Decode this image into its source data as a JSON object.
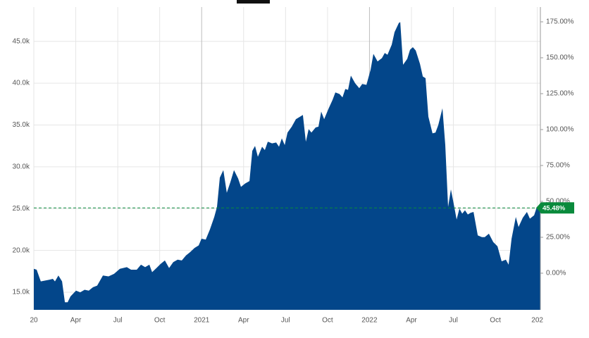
{
  "chart_data": {
    "type": "area",
    "color": "#03468a",
    "grid": true,
    "x": [
      0,
      0.2,
      0.5,
      1.11,
      1.36,
      1.51,
      1.76,
      2.02,
      2.22,
      2.42,
      2.62,
      3.02,
      3.32,
      3.63,
      3.93,
      4.23,
      4.53,
      4.94,
      5.34,
      5.74,
      6.15,
      6.65,
      6.95,
      7.36,
      7.66,
      7.96,
      8.26,
      8.46,
      8.77,
      9.07,
      9.37,
      9.67,
      9.97,
      10.28,
      10.58,
      10.88,
      11.18,
      11.49,
      11.79,
      11.99,
      12.29,
      12.59,
      12.9,
      13.1,
      13.3,
      13.55,
      13.8,
      14.06,
      14.31,
      14.61,
      14.81,
      15.11,
      15.42,
      15.62,
      15.82,
      16.02,
      16.32,
      16.52,
      16.73,
      17.03,
      17.33,
      17.53,
      17.73,
      17.94,
      18.14,
      18.44,
      18.74,
      19.04,
      19.24,
      19.45,
      19.65,
      19.85,
      20.15,
      20.35,
      20.55,
      20.76,
      21.06,
      21.36,
      21.56,
      21.86,
      22.07,
      22.27,
      22.47,
      22.67,
      22.97,
      23.27,
      23.48,
      23.78,
      24.08,
      24.28,
      24.58,
      24.89,
      25.09,
      25.29,
      25.59,
      25.79,
      26.1,
      26.2,
      26.4,
      26.7,
      26.9,
      27.1,
      27.31,
      27.61,
      27.81,
      28.01,
      28.21,
      28.51,
      28.72,
      28.92,
      29.22,
      29.42,
      29.62,
      29.82,
      30.02,
      30.23,
      30.43,
      30.63,
      30.83,
      31.03,
      31.23,
      31.44,
      31.74,
      32.04,
      32.24,
      32.54,
      32.85,
      33.15,
      33.45,
      33.75,
      33.95,
      34.16,
      34.46,
      34.66,
      34.96,
      35.26,
      35.47,
      35.77,
      35.97,
      36.22
    ],
    "values": [
      17800,
      17700,
      16300,
      16500,
      16600,
      16300,
      17000,
      16300,
      13800,
      13800,
      14500,
      15200,
      15000,
      15300,
      15200,
      15600,
      15800,
      17000,
      16900,
      17200,
      17800,
      18000,
      17700,
      17700,
      18300,
      18000,
      18300,
      17400,
      17900,
      18400,
      18800,
      17900,
      18600,
      18900,
      18800,
      19400,
      19800,
      20300,
      20600,
      21400,
      21300,
      22500,
      24000,
      25200,
      28700,
      29600,
      26900,
      28200,
      29600,
      28600,
      27600,
      28000,
      28300,
      31900,
      32500,
      31200,
      32400,
      32000,
      33000,
      32800,
      32900,
      32400,
      33400,
      32600,
      34100,
      34800,
      35700,
      36000,
      36200,
      33000,
      34500,
      34100,
      34700,
      34800,
      36600,
      35700,
      36900,
      38000,
      38900,
      38700,
      38300,
      39300,
      39200,
      40900,
      40000,
      39400,
      39900,
      39800,
      41600,
      43500,
      42600,
      43000,
      43600,
      43400,
      44600,
      46100,
      47200,
      47300,
      42200,
      42900,
      44000,
      44300,
      43900,
      42300,
      40800,
      40600,
      36000,
      34000,
      34100,
      35000,
      37000,
      32600,
      25200,
      27300,
      25600,
      23700,
      25000,
      24400,
      24800,
      24300,
      24500,
      24600,
      21800,
      21600,
      21600,
      22000,
      21000,
      20500,
      18700,
      18900,
      18300,
      21400,
      24000,
      22800,
      23900,
      24600,
      23800,
      24200,
      25200,
      25000
    ],
    "xlim": [
      0,
      36.22
    ],
    "xticks": [
      {
        "value": 0,
        "label": "20"
      },
      {
        "value": 3,
        "label": "Apr"
      },
      {
        "value": 6,
        "label": "Jul"
      },
      {
        "value": 9,
        "label": "Oct"
      },
      {
        "value": 12,
        "label": "2021"
      },
      {
        "value": 15,
        "label": "Apr"
      },
      {
        "value": 18,
        "label": "Jul"
      },
      {
        "value": 21,
        "label": "Oct"
      },
      {
        "value": 24,
        "label": "2022"
      },
      {
        "value": 27,
        "label": "Apr"
      },
      {
        "value": 30,
        "label": "Jul"
      },
      {
        "value": 33,
        "label": "Oct"
      },
      {
        "value": 36,
        "label": "202"
      }
    ],
    "ylim": [
      12900,
      49100
    ],
    "yticks": [
      {
        "value": 15000,
        "label": "15.0k"
      },
      {
        "value": 20000,
        "label": "20.0k"
      },
      {
        "value": 25000,
        "label": "25.0k"
      },
      {
        "value": 30000,
        "label": "30.0k"
      },
      {
        "value": 35000,
        "label": "35.0k"
      },
      {
        "value": 40000,
        "label": "40.0k"
      },
      {
        "value": 45000,
        "label": "45.0k"
      }
    ],
    "y2lim": [
      -25.5,
      185.3
    ],
    "y2ticks": [
      {
        "value": 0,
        "label": "0.00%"
      },
      {
        "value": 25,
        "label": "25.00%"
      },
      {
        "value": 50,
        "label": "50.00%"
      },
      {
        "value": 75,
        "label": "75.00%"
      },
      {
        "value": 100,
        "label": "100.00%"
      },
      {
        "value": 125,
        "label": "125.00%"
      },
      {
        "value": 150,
        "label": "150.00%"
      },
      {
        "value": 175,
        "label": "175.00%"
      }
    ],
    "reference": {
      "value": 45.48,
      "label": "45.48%",
      "color": "#0a8a3c"
    }
  }
}
